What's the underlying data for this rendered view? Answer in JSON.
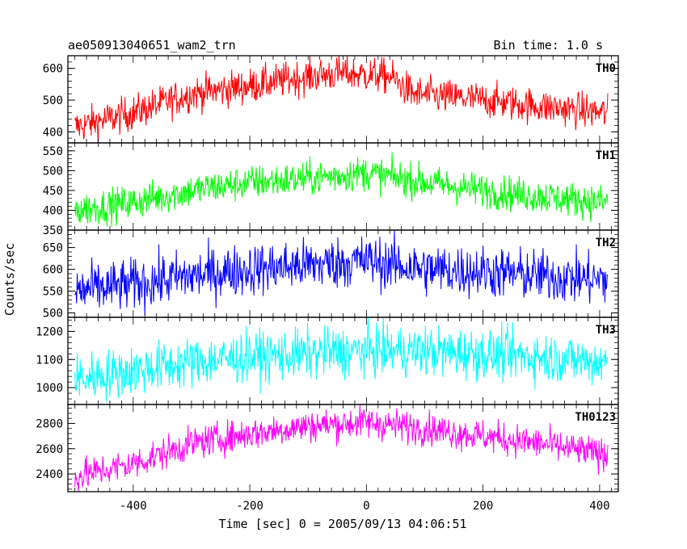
{
  "chart_data": {
    "type": "line",
    "title": "ae050913040651_wam2_trn",
    "bin_time_label": "Bin time: 1.0 s",
    "xlabel": "Time [sec] 0 = 2005/09/13 04:06:51",
    "ylabel": "Counts/sec",
    "xlim": [
      -512,
      432
    ],
    "x_ticks": [
      -400,
      -200,
      0,
      200,
      400
    ],
    "grid": false,
    "panels": [
      {
        "name": "TH0",
        "color": "#ff0000",
        "ylim": [
          365,
          640
        ],
        "y_ticks": [
          400,
          500,
          600
        ],
        "trend": [
          [
            -500,
            415
          ],
          [
            -400,
            460
          ],
          [
            -300,
            520
          ],
          [
            -200,
            545
          ],
          [
            -100,
            575
          ],
          [
            -40,
            585
          ],
          [
            40,
            575
          ],
          [
            80,
            520
          ],
          [
            200,
            500
          ],
          [
            300,
            480
          ],
          [
            410,
            460
          ]
        ],
        "noise": 28
      },
      {
        "name": "TH1",
        "color": "#00ff00",
        "ylim": [
          350,
          570
        ],
        "y_ticks": [
          350,
          400,
          450,
          500,
          550
        ],
        "trend": [
          [
            -500,
            400
          ],
          [
            -400,
            420
          ],
          [
            -300,
            450
          ],
          [
            -200,
            470
          ],
          [
            -100,
            480
          ],
          [
            0,
            495
          ],
          [
            100,
            470
          ],
          [
            200,
            450
          ],
          [
            300,
            435
          ],
          [
            410,
            420
          ]
        ],
        "noise": 22
      },
      {
        "name": "TH2",
        "color": "#0000ff",
        "ylim": [
          490,
          690
        ],
        "y_ticks": [
          500,
          550,
          600,
          650
        ],
        "trend": [
          [
            -500,
            550
          ],
          [
            -400,
            565
          ],
          [
            -300,
            585
          ],
          [
            -200,
            600
          ],
          [
            -100,
            610
          ],
          [
            0,
            620
          ],
          [
            100,
            600
          ],
          [
            200,
            595
          ],
          [
            300,
            585
          ],
          [
            410,
            575
          ]
        ],
        "noise": 30
      },
      {
        "name": "TH3",
        "color": "#00ffff",
        "ylim": [
          940,
          1250
        ],
        "y_ticks": [
          1000,
          1100,
          1200
        ],
        "trend": [
          [
            -500,
            1030
          ],
          [
            -400,
            1060
          ],
          [
            -300,
            1090
          ],
          [
            -200,
            1110
          ],
          [
            -100,
            1120
          ],
          [
            0,
            1130
          ],
          [
            100,
            1130
          ],
          [
            200,
            1120
          ],
          [
            300,
            1110
          ],
          [
            410,
            1090
          ]
        ],
        "noise": 45
      },
      {
        "name": "TH0123",
        "color": "#ff00ff",
        "ylim": [
          2260,
          2950
        ],
        "y_ticks": [
          2400,
          2600,
          2800
        ],
        "trend": [
          [
            -500,
            2380
          ],
          [
            -400,
            2480
          ],
          [
            -300,
            2640
          ],
          [
            -200,
            2720
          ],
          [
            -100,
            2780
          ],
          [
            0,
            2810
          ],
          [
            100,
            2760
          ],
          [
            200,
            2700
          ],
          [
            300,
            2640
          ],
          [
            410,
            2550
          ]
        ],
        "noise": 65
      }
    ]
  }
}
